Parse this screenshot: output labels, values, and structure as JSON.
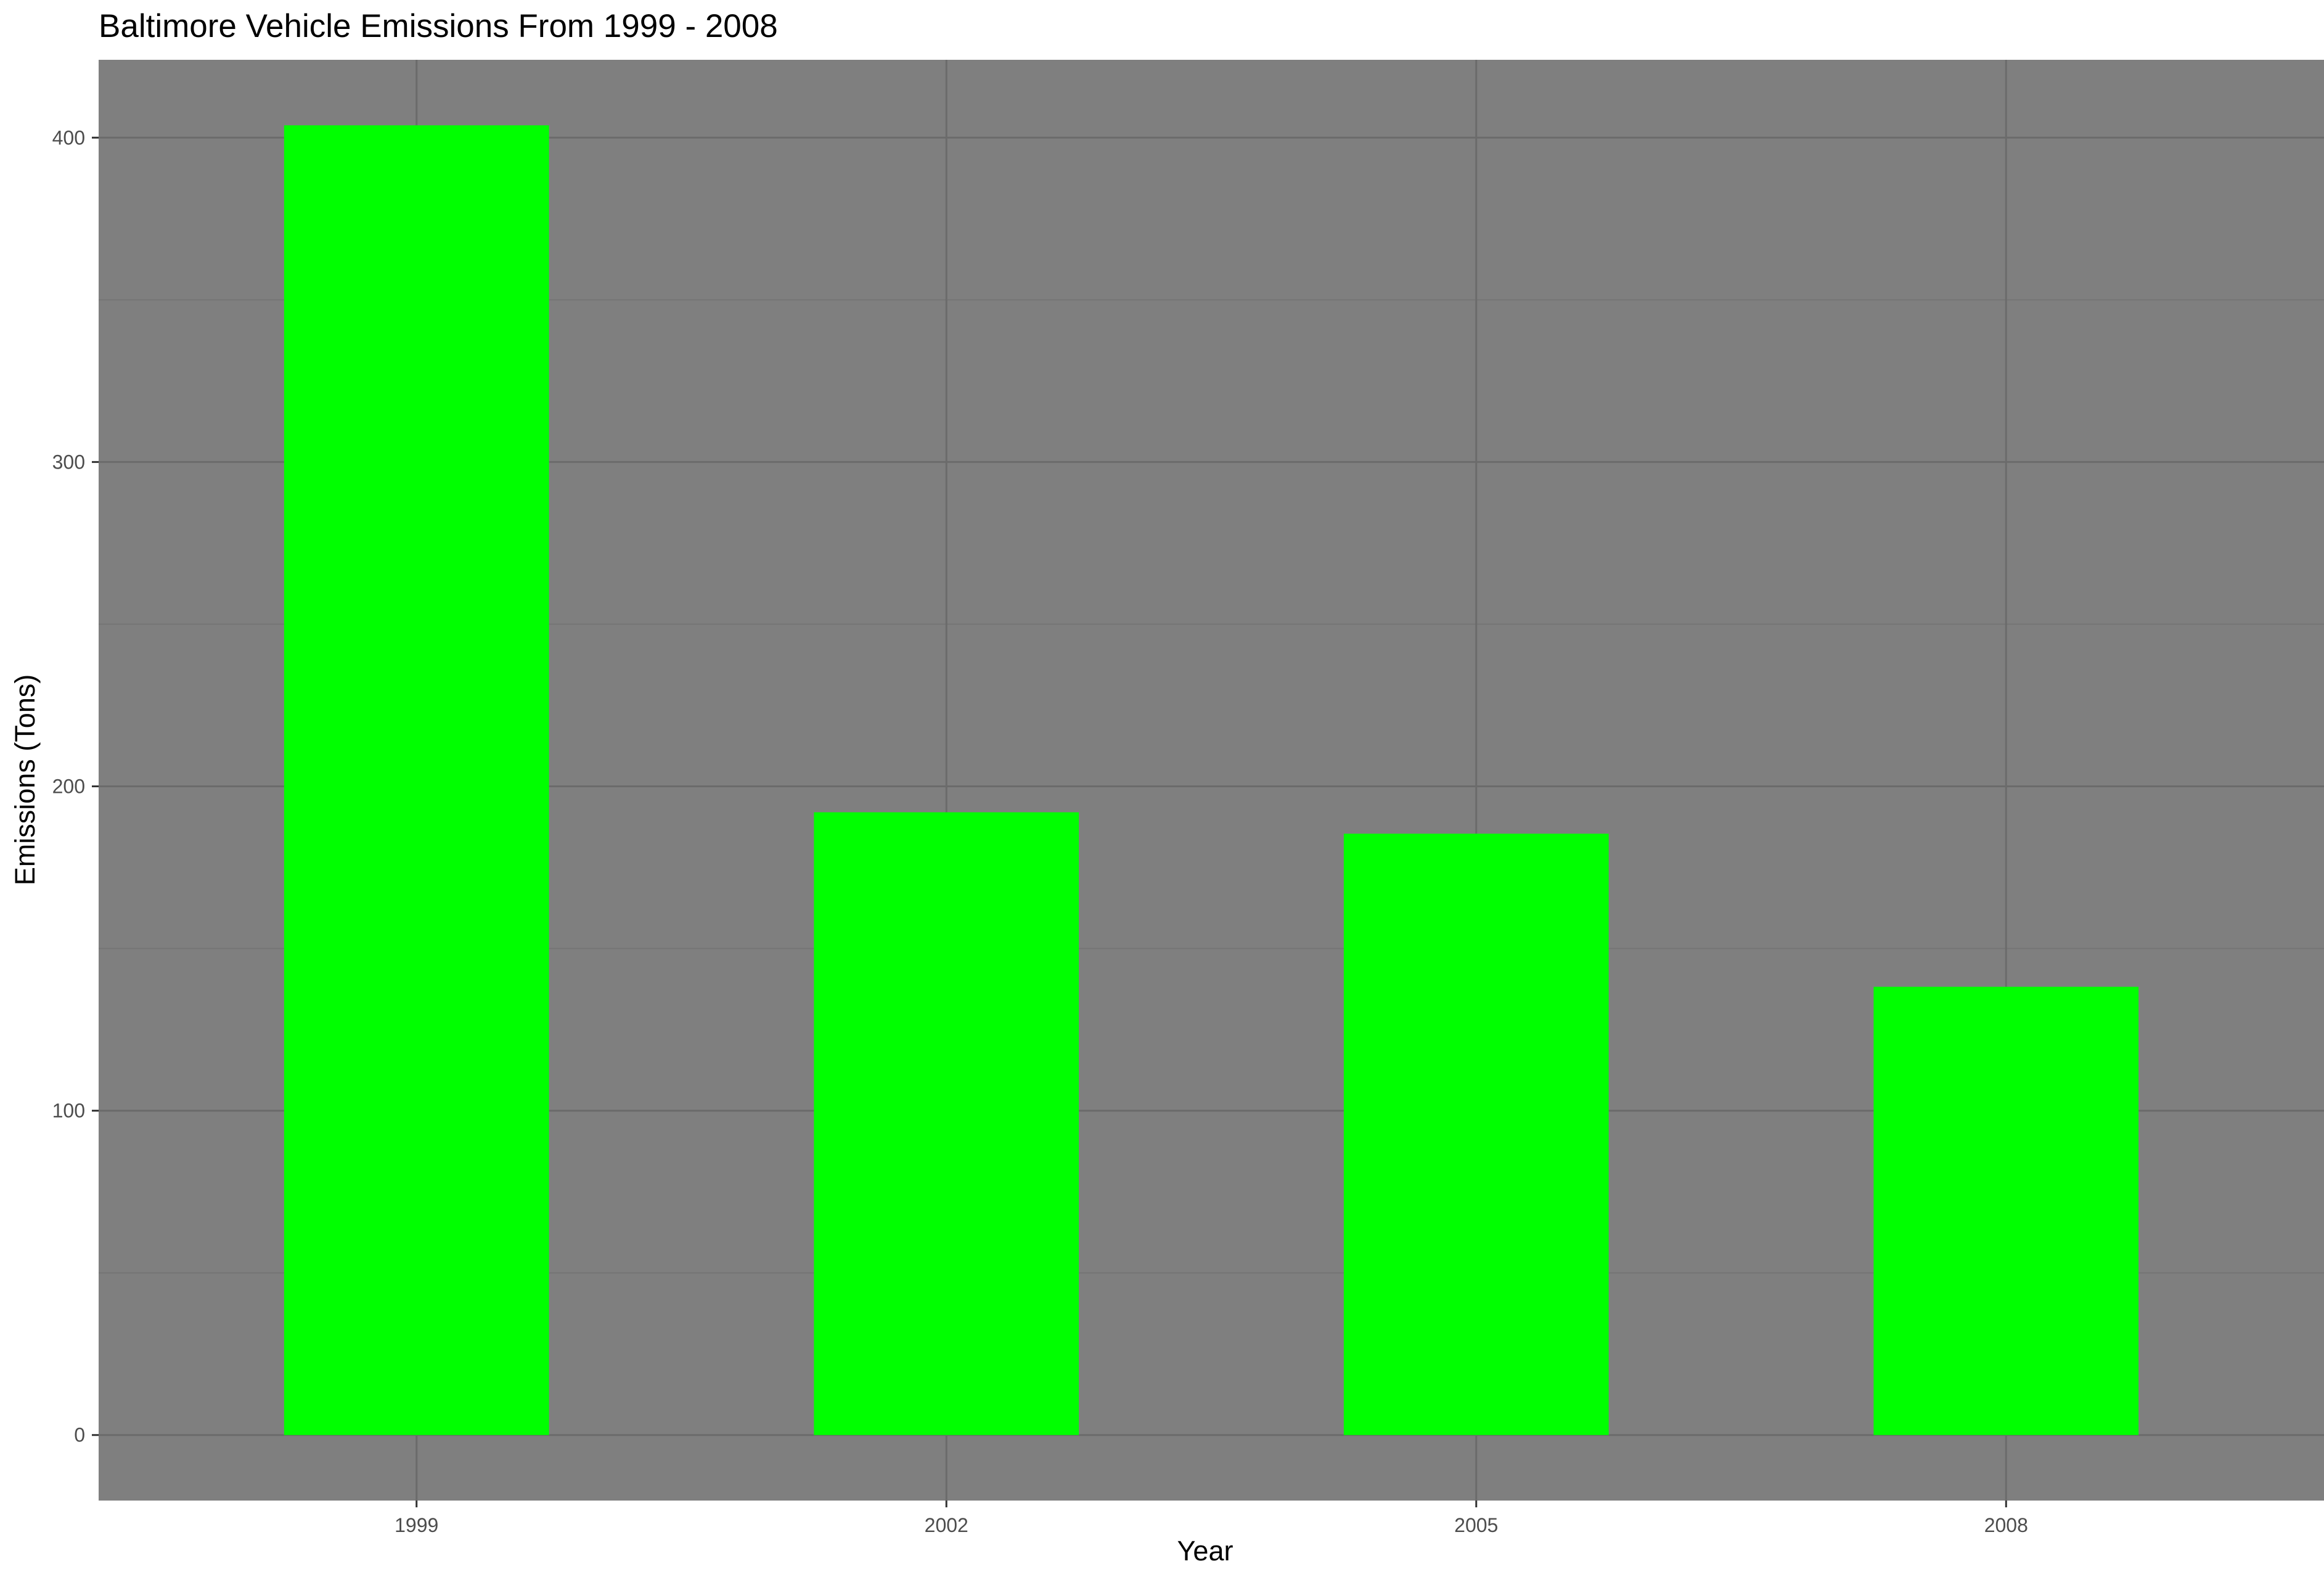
{
  "chart_data": {
    "type": "bar",
    "title": "Baltimore Vehicle Emissions From 1999 - 2008",
    "xlabel": "Year",
    "ylabel": "Emissions (Tons)",
    "categories": [
      "1999",
      "2002",
      "2005",
      "2008"
    ],
    "values": [
      403.8,
      192.0,
      185.4,
      138.2
    ],
    "ylim": [
      -20.2,
      424.0
    ],
    "yticks": [
      0,
      100,
      200,
      300,
      400
    ],
    "grid": true,
    "legend": "none",
    "colors": {
      "bar": "#00ff00",
      "panel_background": "#7f7f7f",
      "grid_major": "#6b6b6b",
      "grid_minor": "#747474",
      "page_background": "#ffffff"
    }
  }
}
